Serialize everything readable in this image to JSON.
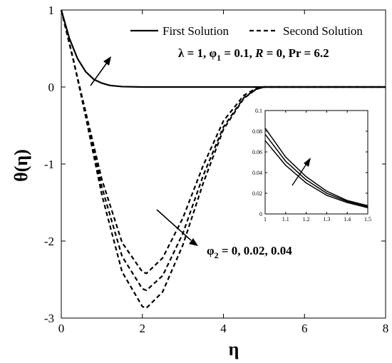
{
  "chart_data": {
    "type": "line",
    "xlabel": "η",
    "ylabel": "θ(η)",
    "xlim": [
      0,
      8
    ],
    "ylim": [
      -3,
      1
    ],
    "xticks": [
      "0",
      "2",
      "4",
      "6",
      "8"
    ],
    "yticks": [
      "1",
      "0",
      "-1",
      "-2",
      "-3"
    ],
    "grid": false,
    "legend": {
      "placement": "top-right",
      "entries": [
        {
          "label": "First Solution",
          "style": "solid"
        },
        {
          "label": "Second Solution",
          "style": "dashed"
        }
      ]
    },
    "annotations": {
      "params_parts": [
        "λ = 1, φ",
        "1",
        " = 0.1, ",
        "R",
        " = 0, ",
        "Pr",
        " = 6.2"
      ],
      "phi2_parts": [
        "φ",
        "2",
        " = 0, 0.02, 0.04"
      ]
    },
    "series": [
      {
        "style": "solid",
        "x": [
          0,
          0.2,
          0.4,
          0.6,
          0.8,
          1.0,
          1.2,
          1.5,
          2.0,
          3.0,
          8.0
        ],
        "y": [
          1,
          0.63,
          0.37,
          0.2,
          0.1,
          0.05,
          0.02,
          0.005,
          0,
          0,
          0
        ]
      },
      {
        "style": "dashed",
        "x": [
          0,
          0.3,
          0.6,
          1.0,
          1.5,
          2.0,
          2.1,
          2.5,
          3.0,
          3.5,
          4.0,
          4.5,
          4.8,
          5.0,
          8.0
        ],
        "y": [
          1,
          0.35,
          -0.35,
          -1.3,
          -2.2,
          -2.62,
          -2.64,
          -2.45,
          -1.9,
          -1.15,
          -0.52,
          -0.14,
          -0.03,
          0,
          0
        ]
      },
      {
        "style": "dashed",
        "x": [
          0,
          0.3,
          0.6,
          1.0,
          1.5,
          2.0,
          2.1,
          2.5,
          3.0,
          3.5,
          4.0,
          4.5,
          4.8,
          5.0,
          8.0
        ],
        "y": [
          1,
          0.35,
          -0.38,
          -1.4,
          -2.4,
          -2.85,
          -2.87,
          -2.66,
          -2.05,
          -1.25,
          -0.55,
          -0.15,
          -0.03,
          0,
          0
        ]
      },
      {
        "style": "dashed",
        "x": [
          0,
          0.3,
          0.6,
          1.0,
          1.5,
          2.0,
          2.1,
          2.5,
          3.0,
          3.5,
          4.0,
          4.5,
          4.8,
          5.0,
          8.0
        ],
        "y": [
          1,
          0.34,
          -0.32,
          -1.2,
          -2.02,
          -2.4,
          -2.42,
          -2.22,
          -1.7,
          -1.02,
          -0.44,
          -0.11,
          -0.02,
          0,
          0
        ]
      }
    ],
    "inset": {
      "xlim": [
        1,
        1.5
      ],
      "ylim": [
        0,
        0.1
      ],
      "xticks": [
        "1",
        "1.1",
        "1.2",
        "1.3",
        "1.4",
        "1.5"
      ],
      "yticks": [
        "0.1",
        "0.08",
        "0.06",
        "0.04",
        "0.02",
        "0"
      ],
      "series": [
        {
          "style": "solid",
          "x": [
            1,
            1.1,
            1.2,
            1.3,
            1.4,
            1.5
          ],
          "y": [
            0.083,
            0.055,
            0.036,
            0.022,
            0.013,
            0.008
          ]
        },
        {
          "style": "solid",
          "x": [
            1,
            1.1,
            1.2,
            1.3,
            1.4,
            1.5
          ],
          "y": [
            0.077,
            0.051,
            0.033,
            0.02,
            0.012,
            0.007
          ]
        },
        {
          "style": "solid",
          "x": [
            1,
            1.1,
            1.2,
            1.3,
            1.4,
            1.5
          ],
          "y": [
            0.071,
            0.047,
            0.03,
            0.018,
            0.011,
            0.006
          ]
        }
      ]
    }
  }
}
